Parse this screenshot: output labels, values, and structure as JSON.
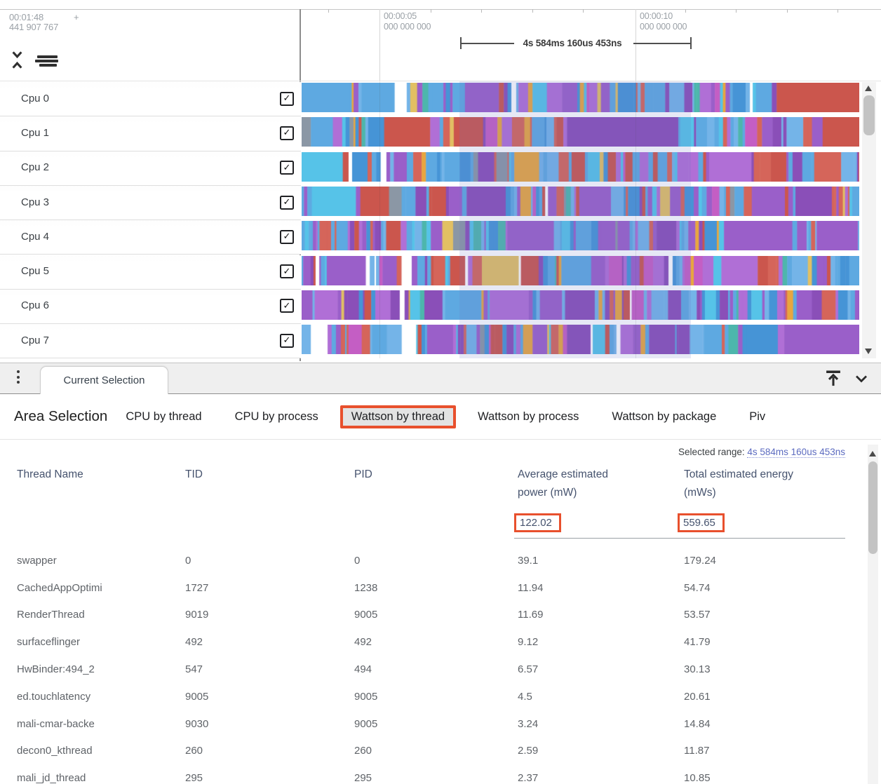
{
  "timeline": {
    "origin_time": "00:01:48",
    "origin_plus": "+",
    "origin_ns": "441 907 767",
    "ticks": [
      {
        "time": "00:00:05",
        "ns": "000 000 000"
      },
      {
        "time": "00:00:10",
        "ns": "000 000 000"
      }
    ],
    "ruler_label": "4s 584ms 160us 453ns"
  },
  "tracks": {
    "rows": [
      {
        "label": "Cpu 0",
        "checked": true
      },
      {
        "label": "Cpu 1",
        "checked": true
      },
      {
        "label": "Cpu 2",
        "checked": true
      },
      {
        "label": "Cpu 3",
        "checked": true
      },
      {
        "label": "Cpu 4",
        "checked": true
      },
      {
        "label": "Cpu 5",
        "checked": true
      },
      {
        "label": "Cpu 6",
        "checked": true
      },
      {
        "label": "Cpu 7",
        "checked": true
      }
    ]
  },
  "panel": {
    "tab_label": "Current Selection"
  },
  "area_selection": {
    "title": "Area Selection",
    "tabs": [
      {
        "label": "CPU by thread",
        "selected": false
      },
      {
        "label": "CPU by process",
        "selected": false
      },
      {
        "label": "Wattson by thread",
        "selected": true
      },
      {
        "label": "Wattson by process",
        "selected": false
      },
      {
        "label": "Wattson by package",
        "selected": false
      },
      {
        "label": "Piv",
        "selected": false
      }
    ],
    "selected_range_label": "Selected range:",
    "selected_range_value": "4s 584ms 160us 453ns"
  },
  "table": {
    "columns": [
      {
        "lines": [
          "Thread Name"
        ]
      },
      {
        "lines": [
          "TID"
        ]
      },
      {
        "lines": [
          "PID"
        ]
      },
      {
        "lines": [
          "Average estimated",
          "power (mW)"
        ]
      },
      {
        "lines": [
          "Total estimated energy",
          "(mWs)"
        ]
      }
    ],
    "summary": {
      "avg_power": "122.02",
      "total_energy": "559.65"
    },
    "rows": [
      [
        "swapper",
        "0",
        "0",
        "39.1",
        "179.24"
      ],
      [
        "CachedAppOptimi",
        "1727",
        "1238",
        "11.94",
        "54.74"
      ],
      [
        "RenderThread",
        "9019",
        "9005",
        "11.69",
        "53.57"
      ],
      [
        "surfaceflinger",
        "492",
        "492",
        "9.12",
        "41.79"
      ],
      [
        "HwBinder:494_2",
        "547",
        "494",
        "6.57",
        "30.13"
      ],
      [
        "ed.touchlatency",
        "9005",
        "9005",
        "4.5",
        "20.61"
      ],
      [
        "mali-cmar-backe",
        "9030",
        "9005",
        "3.24",
        "14.84"
      ],
      [
        "decon0_kthread",
        "260",
        "260",
        "2.59",
        "11.87"
      ],
      [
        "mali_jd_thread",
        "295",
        "295",
        "2.37",
        "10.85"
      ]
    ]
  },
  "icons": {
    "collapse_tracks": "collapse-tracks-icon",
    "sort_tracks": "track-sort-icon",
    "panel_menu": "kebab-menu-icon",
    "dock_top": "vertical-align-top-icon",
    "collapse_panel": "chevron-down-icon"
  },
  "colors": {
    "annotation_orange": "#e8502d",
    "link_blue": "#5c6bc0",
    "table_header_slate": "#46536e",
    "muted_gray": "#9aa0a6",
    "track_palette": [
      "#5ea9e1",
      "#74b4e8",
      "#4694d6",
      "#56c3e8",
      "#9a5fc9",
      "#8a4fb8",
      "#b06fd6",
      "#d5655a",
      "#cb564d",
      "#e8a63f",
      "#e2c063",
      "#4db6ac",
      "#c45ec4",
      "#8b97a5",
      "#ffffff"
    ]
  }
}
